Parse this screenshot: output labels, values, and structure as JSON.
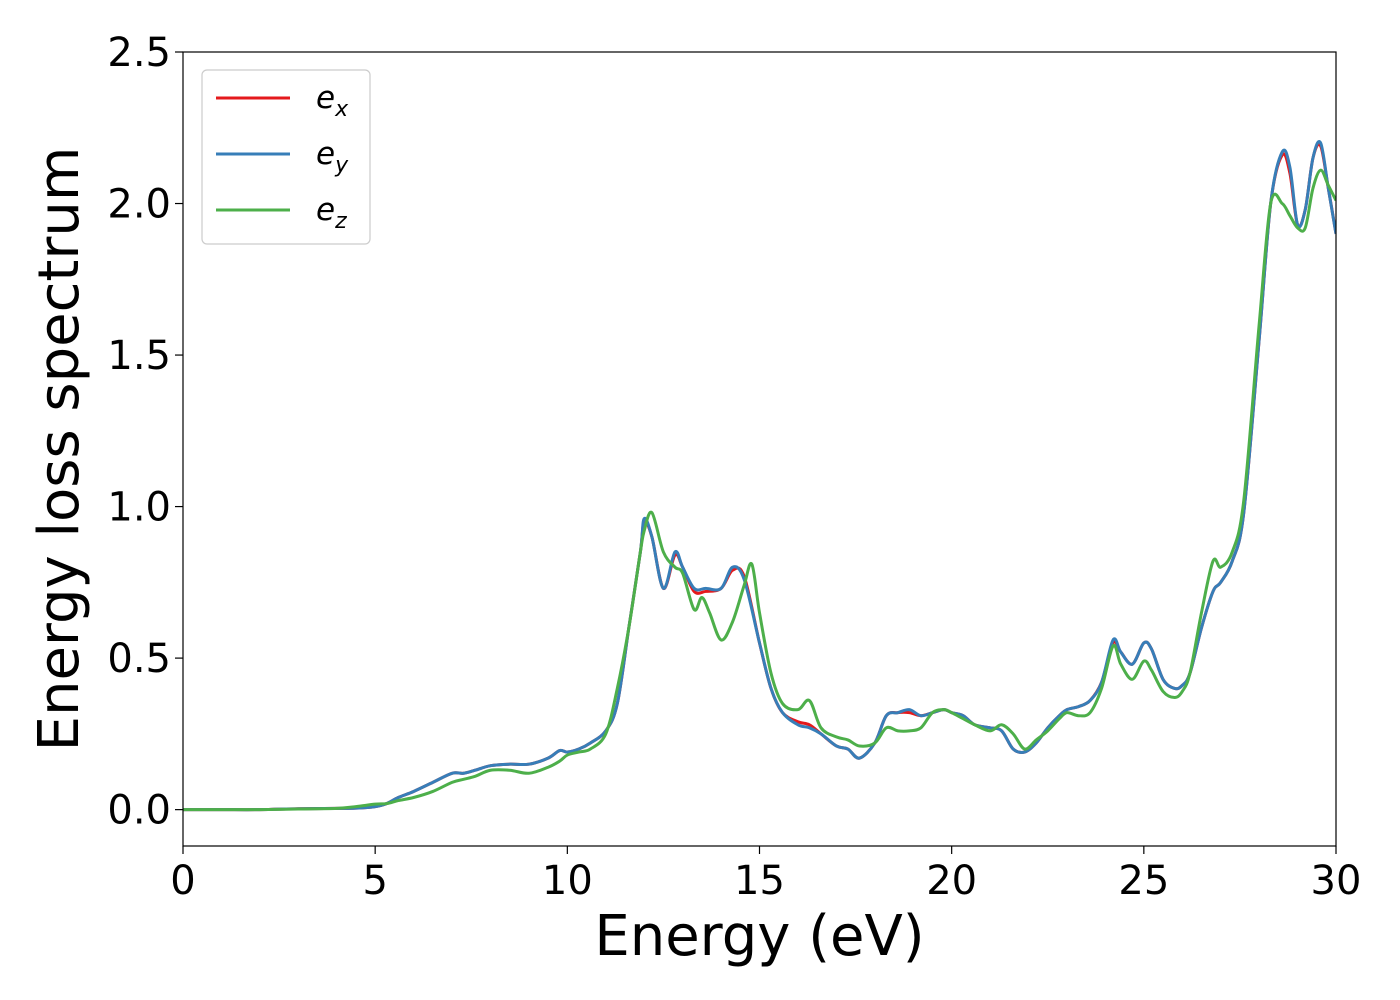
{
  "chart_data": {
    "type": "line",
    "title": "",
    "xlabel": "Energy (eV)",
    "ylabel": "Energy loss spectrum",
    "xlim": [
      0,
      30
    ],
    "ylim": [
      -0.12,
      2.5
    ],
    "xticks": [
      0,
      5,
      10,
      15,
      20,
      25,
      30
    ],
    "yticks": [
      0.0,
      0.5,
      1.0,
      1.5,
      2.0,
      2.5
    ],
    "xtick_labels": [
      "0",
      "5",
      "10",
      "15",
      "20",
      "25",
      "30"
    ],
    "ytick_labels": [
      "0.0",
      "0.5",
      "1.0",
      "1.5",
      "2.0",
      "2.5"
    ],
    "grid": false,
    "legend_position": "top-left",
    "series": [
      {
        "name": "e_x",
        "legend_main": "e",
        "legend_sub": "x",
        "color": "#e41a1c",
        "x": [
          0,
          1,
          2,
          3,
          4,
          4.5,
          5,
          5.3,
          5.6,
          6.0,
          6.5,
          7.0,
          7.3,
          7.6,
          8.0,
          8.5,
          9.0,
          9.5,
          9.8,
          10.0,
          10.3,
          10.6,
          11.0,
          11.3,
          11.6,
          11.9,
          12.0,
          12.2,
          12.5,
          12.8,
          13.0,
          13.3,
          13.6,
          14.0,
          14.3,
          14.6,
          15.0,
          15.3,
          15.6,
          16.0,
          16.3,
          16.6,
          17.0,
          17.3,
          17.6,
          18.0,
          18.3,
          18.6,
          18.9,
          19.2,
          19.5,
          19.8,
          20.0,
          20.3,
          20.6,
          21.0,
          21.3,
          21.6,
          21.9,
          22.2,
          22.5,
          22.8,
          23.0,
          23.3,
          23.6,
          23.9,
          24.2,
          24.4,
          24.7,
          25.0,
          25.2,
          25.5,
          25.8,
          26.0,
          26.2,
          26.5,
          26.8,
          27.0,
          27.3,
          27.6,
          28.0,
          28.3,
          28.6,
          28.8,
          29.0,
          29.2,
          29.4,
          29.6,
          29.8,
          30.0
        ],
        "y": [
          0.0,
          0.0,
          0.0,
          0.003,
          0.004,
          0.005,
          0.01,
          0.02,
          0.04,
          0.06,
          0.09,
          0.12,
          0.12,
          0.13,
          0.145,
          0.15,
          0.15,
          0.17,
          0.195,
          0.19,
          0.2,
          0.22,
          0.26,
          0.35,
          0.6,
          0.85,
          0.95,
          0.9,
          0.73,
          0.84,
          0.8,
          0.72,
          0.72,
          0.73,
          0.79,
          0.77,
          0.55,
          0.4,
          0.32,
          0.29,
          0.28,
          0.25,
          0.21,
          0.2,
          0.17,
          0.22,
          0.31,
          0.32,
          0.32,
          0.31,
          0.32,
          0.33,
          0.32,
          0.31,
          0.28,
          0.27,
          0.26,
          0.2,
          0.19,
          0.22,
          0.27,
          0.31,
          0.33,
          0.34,
          0.36,
          0.42,
          0.55,
          0.52,
          0.48,
          0.55,
          0.53,
          0.43,
          0.4,
          0.41,
          0.45,
          0.6,
          0.72,
          0.75,
          0.82,
          0.98,
          1.55,
          2.0,
          2.16,
          2.1,
          1.93,
          1.98,
          2.15,
          2.19,
          2.05,
          1.9
        ]
      },
      {
        "name": "e_y",
        "legend_main": "e",
        "legend_sub": "y",
        "color": "#377eb8",
        "x": [
          0,
          1,
          2,
          3,
          4,
          4.5,
          5,
          5.3,
          5.6,
          6.0,
          6.5,
          7.0,
          7.3,
          7.6,
          8.0,
          8.5,
          9.0,
          9.5,
          9.8,
          10.0,
          10.3,
          10.6,
          11.0,
          11.3,
          11.6,
          11.9,
          12.0,
          12.2,
          12.5,
          12.8,
          13.0,
          13.3,
          13.6,
          14.0,
          14.3,
          14.6,
          15.0,
          15.3,
          15.6,
          16.0,
          16.3,
          16.6,
          17.0,
          17.3,
          17.6,
          18.0,
          18.3,
          18.6,
          18.9,
          19.2,
          19.5,
          19.8,
          20.0,
          20.3,
          20.6,
          21.0,
          21.3,
          21.6,
          21.9,
          22.2,
          22.5,
          22.8,
          23.0,
          23.3,
          23.6,
          23.9,
          24.2,
          24.4,
          24.7,
          25.0,
          25.2,
          25.5,
          25.8,
          26.0,
          26.2,
          26.5,
          26.8,
          27.0,
          27.3,
          27.6,
          28.0,
          28.3,
          28.6,
          28.8,
          29.0,
          29.2,
          29.4,
          29.6,
          29.8,
          30.0
        ],
        "y": [
          0.0,
          0.0,
          0.0,
          0.003,
          0.004,
          0.005,
          0.01,
          0.02,
          0.04,
          0.06,
          0.09,
          0.12,
          0.12,
          0.13,
          0.145,
          0.15,
          0.15,
          0.17,
          0.195,
          0.19,
          0.2,
          0.22,
          0.26,
          0.35,
          0.6,
          0.85,
          0.96,
          0.9,
          0.73,
          0.85,
          0.8,
          0.73,
          0.73,
          0.73,
          0.8,
          0.76,
          0.55,
          0.4,
          0.32,
          0.28,
          0.27,
          0.25,
          0.21,
          0.2,
          0.17,
          0.22,
          0.31,
          0.32,
          0.33,
          0.31,
          0.32,
          0.33,
          0.32,
          0.31,
          0.28,
          0.27,
          0.26,
          0.2,
          0.19,
          0.22,
          0.27,
          0.31,
          0.33,
          0.34,
          0.36,
          0.42,
          0.56,
          0.52,
          0.48,
          0.55,
          0.53,
          0.43,
          0.4,
          0.41,
          0.45,
          0.6,
          0.72,
          0.75,
          0.82,
          0.98,
          1.55,
          2.0,
          2.17,
          2.12,
          1.93,
          1.98,
          2.15,
          2.2,
          2.05,
          1.9
        ]
      },
      {
        "name": "e_z",
        "legend_main": "e",
        "legend_sub": "z",
        "color": "#4daf4a",
        "x": [
          0,
          1,
          2,
          3,
          4,
          4.5,
          5,
          5.3,
          5.6,
          6.0,
          6.5,
          7.0,
          7.3,
          7.6,
          8.0,
          8.5,
          9.0,
          9.5,
          9.8,
          10.0,
          10.3,
          10.6,
          11.0,
          11.3,
          11.6,
          11.9,
          12.0,
          12.2,
          12.5,
          12.8,
          13.0,
          13.3,
          13.5,
          13.7,
          14.0,
          14.3,
          14.6,
          14.8,
          15.0,
          15.3,
          15.6,
          16.0,
          16.3,
          16.6,
          17.0,
          17.3,
          17.6,
          18.0,
          18.3,
          18.6,
          18.9,
          19.2,
          19.5,
          19.8,
          20.0,
          20.3,
          20.6,
          21.0,
          21.3,
          21.6,
          21.9,
          22.2,
          22.5,
          22.8,
          23.0,
          23.3,
          23.6,
          23.9,
          24.2,
          24.4,
          24.7,
          25.0,
          25.2,
          25.5,
          25.8,
          26.0,
          26.2,
          26.5,
          26.8,
          27.0,
          27.3,
          27.6,
          28.0,
          28.3,
          28.6,
          28.8,
          29.0,
          29.2,
          29.4,
          29.6,
          29.8,
          30.0
        ],
        "y": [
          0.0,
          0.0,
          0.0,
          0.002,
          0.004,
          0.01,
          0.018,
          0.02,
          0.03,
          0.04,
          0.06,
          0.09,
          0.1,
          0.11,
          0.13,
          0.13,
          0.12,
          0.14,
          0.16,
          0.18,
          0.19,
          0.2,
          0.25,
          0.4,
          0.6,
          0.85,
          0.92,
          0.98,
          0.85,
          0.8,
          0.78,
          0.66,
          0.7,
          0.65,
          0.56,
          0.62,
          0.74,
          0.81,
          0.65,
          0.45,
          0.35,
          0.33,
          0.36,
          0.27,
          0.24,
          0.23,
          0.21,
          0.22,
          0.27,
          0.26,
          0.26,
          0.27,
          0.32,
          0.33,
          0.32,
          0.3,
          0.28,
          0.26,
          0.28,
          0.25,
          0.2,
          0.23,
          0.26,
          0.3,
          0.32,
          0.31,
          0.32,
          0.4,
          0.54,
          0.48,
          0.43,
          0.49,
          0.46,
          0.39,
          0.37,
          0.39,
          0.45,
          0.65,
          0.82,
          0.8,
          0.85,
          1.02,
          1.6,
          2.0,
          2.0,
          1.96,
          1.92,
          1.92,
          2.05,
          2.11,
          2.06,
          2.01
        ]
      }
    ]
  }
}
